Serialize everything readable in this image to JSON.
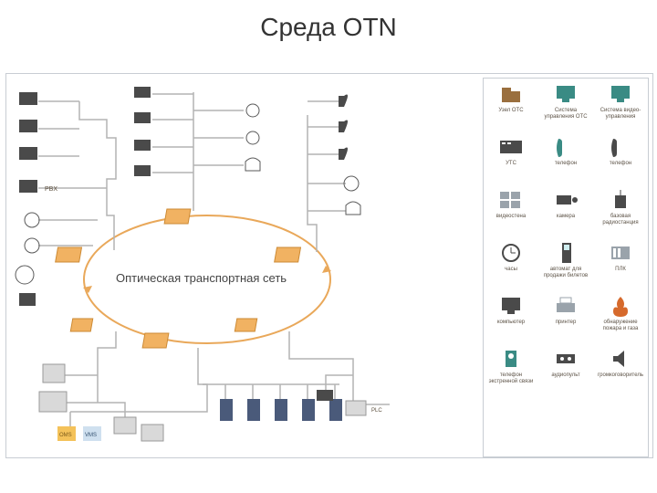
{
  "title": "Среда OTN",
  "ring_label": "Оптическая транспортная сеть",
  "colors": {
    "line": "#b3b3b3",
    "ring": "#e9a85a",
    "node_fill": "#f1b262",
    "node_stroke": "#cc8a34",
    "device_dark": "#4a4a4a",
    "device_blue": "#2f5a9a",
    "legend_teal": "#3a8b84",
    "legend_brown": "#9a6f3e",
    "legend_gray": "#9aa3ab"
  },
  "legend": [
    {
      "label": "Узел ОТС",
      "icon": "folder"
    },
    {
      "label": "Система управления ОТС",
      "icon": "pc-teal"
    },
    {
      "label": "Система видео-управления",
      "icon": "pc-teal"
    },
    {
      "label": "УТС",
      "icon": "pbx"
    },
    {
      "label": "телефон",
      "icon": "phone-teal"
    },
    {
      "label": "телефон",
      "icon": "phone-dark"
    },
    {
      "label": "видеостена",
      "icon": "videowall"
    },
    {
      "label": "камера",
      "icon": "camera"
    },
    {
      "label": "базовая радиостанция",
      "icon": "radio"
    },
    {
      "label": "часы",
      "icon": "clock"
    },
    {
      "label": "автомат для продажи билетов",
      "icon": "kiosk"
    },
    {
      "label": "ПЛК",
      "icon": "plc"
    },
    {
      "label": "компьютер",
      "icon": "pc"
    },
    {
      "label": "принтер",
      "icon": "printer"
    },
    {
      "label": "обнаружение пожара и газа",
      "icon": "fire"
    },
    {
      "label": "телефон экстренной связи",
      "icon": "ephone"
    },
    {
      "label": "аудиопульт",
      "icon": "audio"
    },
    {
      "label": "громкоговоритель",
      "icon": "speaker"
    }
  ]
}
